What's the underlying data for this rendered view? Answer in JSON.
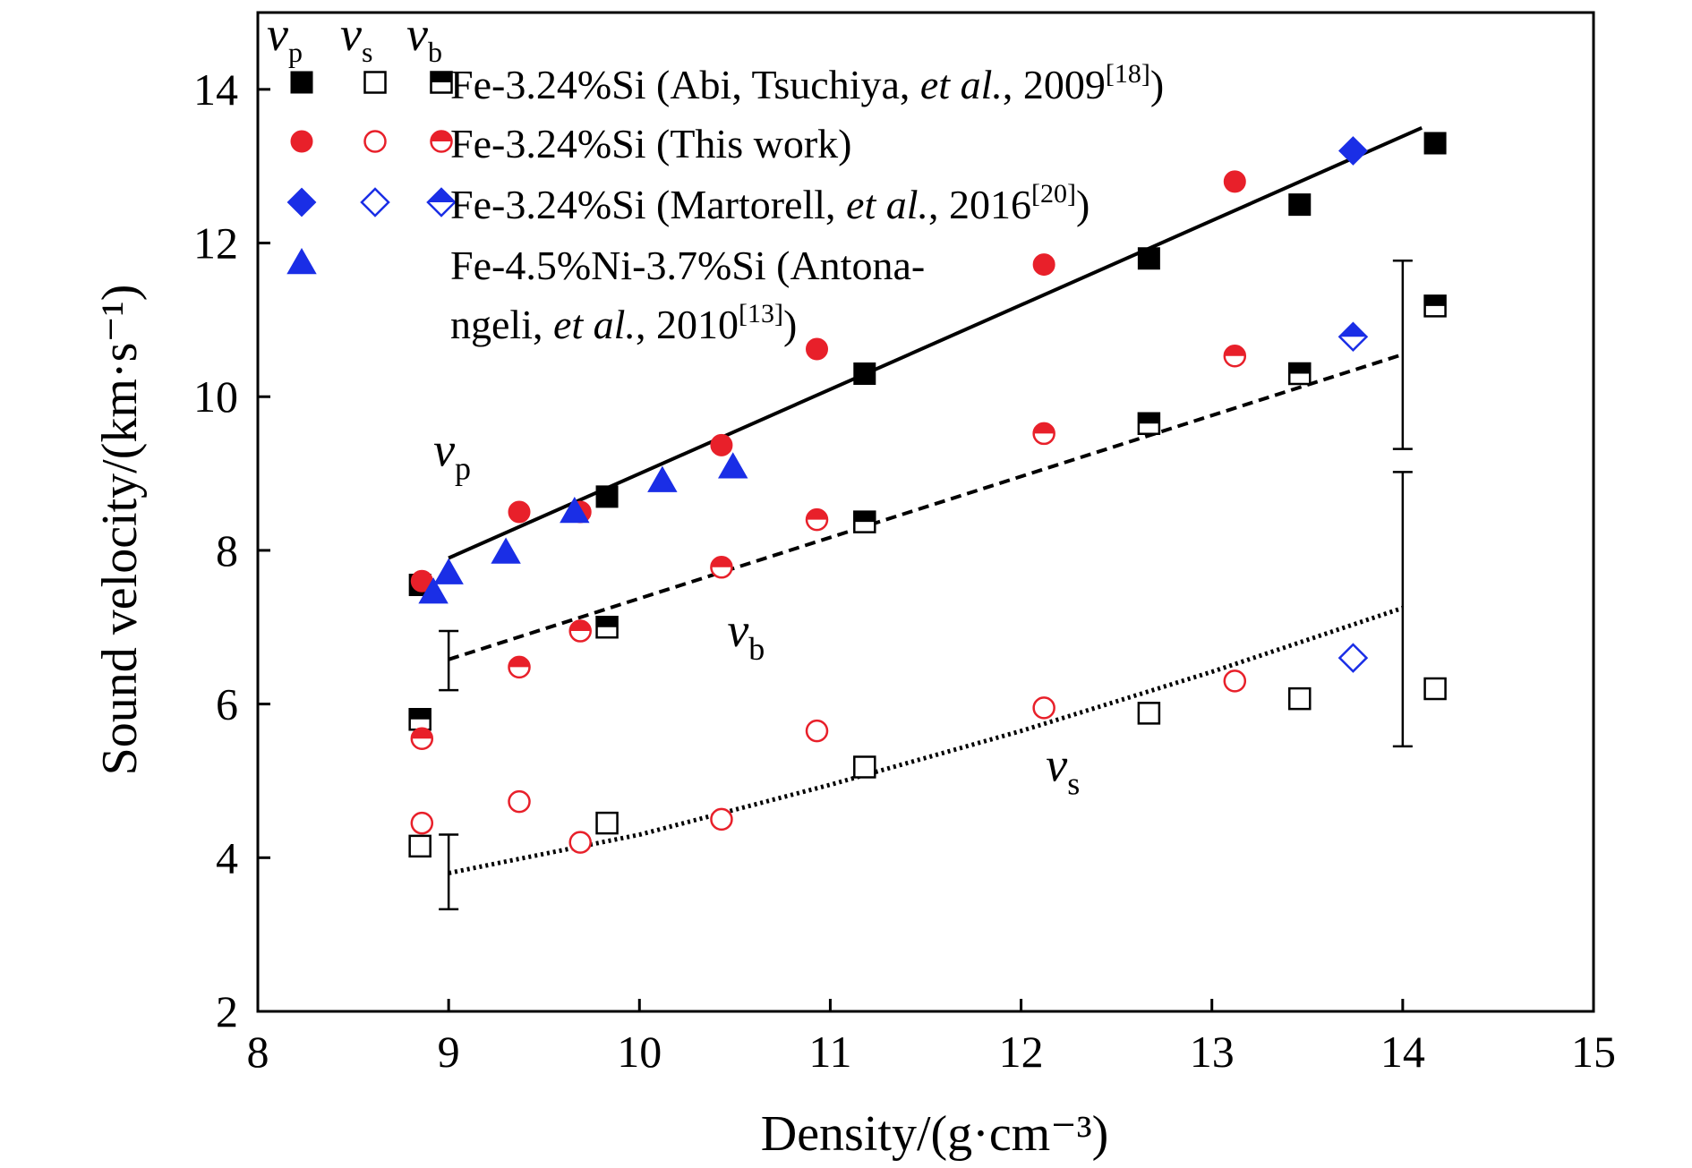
{
  "chart_data": {
    "type": "scatter",
    "xlabel": "Density/(g·cm⁻³)",
    "ylabel": "Sound velocity/(km·s⁻¹)",
    "xlim": [
      8,
      15
    ],
    "ylim": [
      2,
      15
    ],
    "xticks": [
      8,
      9,
      10,
      11,
      12,
      13,
      14,
      15
    ],
    "yticks": [
      2,
      4,
      6,
      8,
      10,
      12,
      14
    ],
    "grid": false,
    "legend": {
      "placement": "top-left",
      "header": [
        {
          "sym": "v",
          "sub": "p"
        },
        {
          "sym": "v",
          "sub": "s"
        },
        {
          "sym": "v",
          "sub": "b"
        }
      ],
      "entries": [
        {
          "name": "abi",
          "pre": "Fe-3.24%Si (Abi, Tsuchiya, ",
          "em": "et al.",
          "post": ", 2009",
          "sup": "[18]",
          "close": ")"
        },
        {
          "name": "this",
          "pre": "Fe-3.24%Si (This work)"
        },
        {
          "name": "mart",
          "pre": "Fe-3.24%Si (Martorell, ",
          "em": "et al.",
          "post": ", 2016",
          "sup": "[20]",
          "close": ")"
        },
        {
          "name": "anton",
          "pre": "Fe-4.5%Ni-3.7%Si (Antona-",
          "line2pre": "ngeli, ",
          "line2em": "et al.",
          "line2post": ", 2010",
          "line2sup": "[13]",
          "line2close": ")"
        }
      ]
    },
    "series": [
      {
        "name": "Fe-3.24%Si (Abi, Tsuchiya, et al., 2009) vp",
        "color": "#000000",
        "marker": "square-filled",
        "x": [
          8.85,
          9.83,
          11.18,
          12.67,
          13.46,
          14.17
        ],
        "y": [
          7.55,
          8.7,
          10.3,
          11.8,
          12.5,
          13.3
        ]
      },
      {
        "name": "Fe-3.24%Si (Abi, Tsuchiya, et al., 2009) vs",
        "color": "#000000",
        "marker": "square-open",
        "x": [
          8.85,
          9.83,
          11.18,
          12.67,
          13.46,
          14.17
        ],
        "y": [
          4.15,
          4.45,
          5.18,
          5.88,
          6.07,
          6.2
        ]
      },
      {
        "name": "Fe-3.24%Si (Abi, Tsuchiya, et al., 2009) vb",
        "color": "#000000",
        "marker": "square-half",
        "x": [
          8.85,
          9.83,
          11.18,
          12.67,
          13.46,
          14.17
        ],
        "y": [
          5.8,
          7.0,
          8.37,
          9.65,
          10.3,
          11.18
        ]
      },
      {
        "name": "Fe-3.24%Si (This work) vp",
        "color": "#e8202a",
        "marker": "circle-filled",
        "x": [
          8.86,
          9.37,
          9.69,
          10.43,
          10.93,
          12.12,
          13.12
        ],
        "y": [
          7.6,
          8.5,
          8.5,
          9.37,
          10.62,
          11.72,
          12.8
        ]
      },
      {
        "name": "Fe-3.24%Si (This work) vs",
        "color": "#e8202a",
        "marker": "circle-open",
        "x": [
          8.86,
          9.37,
          9.69,
          10.43,
          10.93,
          12.12,
          13.12
        ],
        "y": [
          4.45,
          4.73,
          4.2,
          4.5,
          5.65,
          5.95,
          6.3
        ]
      },
      {
        "name": "Fe-3.24%Si (This work) vb",
        "color": "#e8202a",
        "marker": "circle-half",
        "x": [
          8.86,
          9.37,
          9.69,
          10.43,
          10.93,
          12.12,
          13.12
        ],
        "y": [
          5.55,
          6.48,
          6.95,
          7.78,
          8.4,
          9.52,
          10.53
        ]
      },
      {
        "name": "Fe-3.24%Si (Martorell, et al., 2016) vp",
        "color": "#1a2ee6",
        "marker": "diamond-filled",
        "x": [
          13.74
        ],
        "y": [
          13.2
        ]
      },
      {
        "name": "Fe-3.24%Si (Martorell, et al., 2016) vs",
        "color": "#1a2ee6",
        "marker": "diamond-open",
        "x": [
          13.74
        ],
        "y": [
          6.6
        ]
      },
      {
        "name": "Fe-3.24%Si (Martorell, et al., 2016) vb",
        "color": "#1a2ee6",
        "marker": "diamond-half",
        "x": [
          13.74
        ],
        "y": [
          10.78
        ]
      },
      {
        "name": "Fe-4.5%Ni-3.7%Si (Antonangeli, et al., 2010) vp",
        "color": "#1a2ee6",
        "marker": "triangle-filled",
        "x": [
          8.92,
          9.0,
          9.3,
          9.66,
          10.12,
          10.49
        ],
        "y": [
          7.45,
          7.7,
          7.97,
          8.5,
          8.9,
          9.08
        ]
      }
    ],
    "fits": [
      {
        "name": "vp fit",
        "style": "solid",
        "x": [
          9.0,
          14.1
        ],
        "y": [
          7.9,
          13.5
        ]
      },
      {
        "name": "vb fit",
        "style": "dashed",
        "x": [
          9.0,
          14.0
        ],
        "y": [
          6.58,
          10.55
        ]
      },
      {
        "name": "vs fit",
        "style": "dotted",
        "x": [
          9.0,
          10.0,
          11.0,
          12.0,
          13.0,
          14.0
        ],
        "y": [
          3.8,
          4.3,
          4.95,
          5.65,
          6.42,
          7.25
        ]
      }
    ],
    "error_bars": [
      {
        "x": 9.0,
        "y": 6.58,
        "low": 6.18,
        "high": 6.95
      },
      {
        "x": 9.0,
        "y": 3.8,
        "low": 3.33,
        "high": 4.3
      },
      {
        "x": 14.0,
        "y": 10.55,
        "low": 9.32,
        "high": 11.77
      },
      {
        "x": 14.0,
        "y": 7.25,
        "low": 5.45,
        "high": 9.02
      }
    ],
    "annotations": [
      {
        "name": "vp",
        "sym": "v",
        "sub": "p",
        "x": 8.92,
        "y": 9.1
      },
      {
        "name": "vb",
        "sym": "v",
        "sub": "b",
        "x": 10.46,
        "y": 6.75
      },
      {
        "name": "vs",
        "sym": "v",
        "sub": "s",
        "x": 12.13,
        "y": 5.0
      }
    ]
  }
}
